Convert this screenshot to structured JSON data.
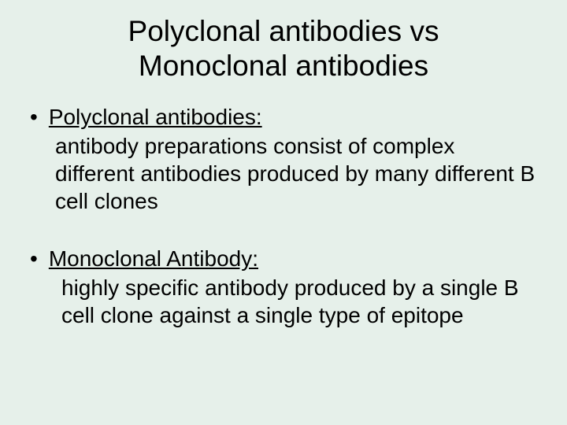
{
  "slide": {
    "title_line1": "Polyclonal antibodies vs",
    "title_line2": "Monoclonal antibodies",
    "background_color": "#e6f0ea",
    "text_color": "#000000",
    "title_fontsize": 37,
    "body_fontsize": 28,
    "font_family": "Arial, Helvetica, sans-serif",
    "bullets": [
      {
        "heading": "Polyclonal antibodies:",
        "body": "antibody preparations consist of complex different antibodies produced by many different B cell clones"
      },
      {
        "heading": "Monoclonal Antibody:",
        "body": "highly specific antibody produced by a single B cell clone against a single type of epitope"
      }
    ]
  }
}
